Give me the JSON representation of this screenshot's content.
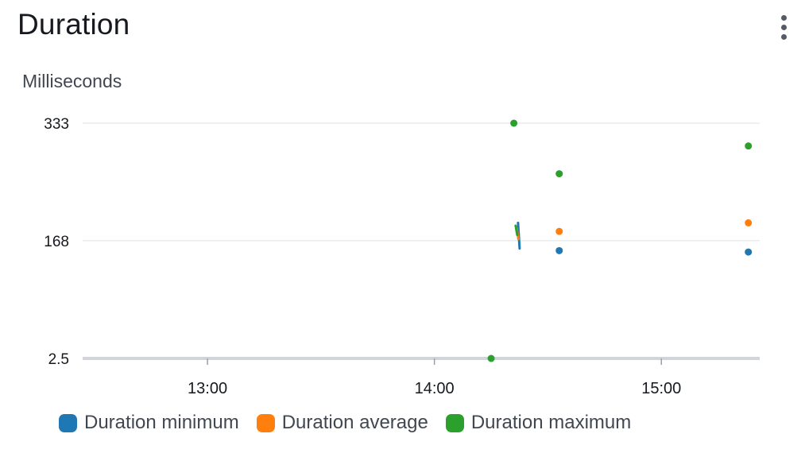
{
  "widget": {
    "title": "Duration",
    "menu_icon": "more-vertical-icon"
  },
  "colors": {
    "minimum": "#1f77b4",
    "average": "#ff7f0e",
    "maximum": "#2ca02c",
    "grid": "#e9ebed",
    "axis": "#d1d5db"
  },
  "chart_data": {
    "type": "line",
    "ylabel": "Milliseconds",
    "xlabel": "",
    "y_ticks": [
      "333",
      "168",
      "2.5"
    ],
    "y_tick_values": [
      333,
      168,
      2.5
    ],
    "x_ticks": [
      "13:00",
      "14:00",
      "15:00"
    ],
    "x_tick_values": [
      "13:00",
      "14:00",
      "15:00"
    ],
    "xlim": [
      "12:27",
      "15:26"
    ],
    "ylim": [
      2.5,
      333
    ],
    "grid": true,
    "legend_position": "bottom",
    "series": [
      {
        "name": "Duration minimum",
        "points": [
          {
            "x": "14:22",
            "y": 193
          },
          {
            "x": "14:22",
            "y": 157
          },
          {
            "x": "14:33",
            "y": 154
          },
          {
            "x": "15:23",
            "y": 152
          }
        ],
        "line_segment": [
          {
            "x": "14:22",
            "y": 193
          },
          {
            "x": "14:22",
            "y": 157
          }
        ]
      },
      {
        "name": "Duration average",
        "points": [
          {
            "x": "14:22",
            "y": 185
          },
          {
            "x": "14:22",
            "y": 170
          },
          {
            "x": "14:33",
            "y": 181
          },
          {
            "x": "15:23",
            "y": 193
          }
        ],
        "line_segment": [
          {
            "x": "14:22",
            "y": 185
          },
          {
            "x": "14:22",
            "y": 170
          }
        ]
      },
      {
        "name": "Duration maximum",
        "points": [
          {
            "x": "14:15",
            "y": 2.5
          },
          {
            "x": "14:21",
            "y": 333
          },
          {
            "x": "14:22",
            "y": 189
          },
          {
            "x": "14:22",
            "y": 176
          },
          {
            "x": "14:33",
            "y": 262
          },
          {
            "x": "15:23",
            "y": 301
          }
        ],
        "line_segment": [
          {
            "x": "14:22",
            "y": 189
          },
          {
            "x": "14:22",
            "y": 176
          }
        ]
      }
    ]
  }
}
